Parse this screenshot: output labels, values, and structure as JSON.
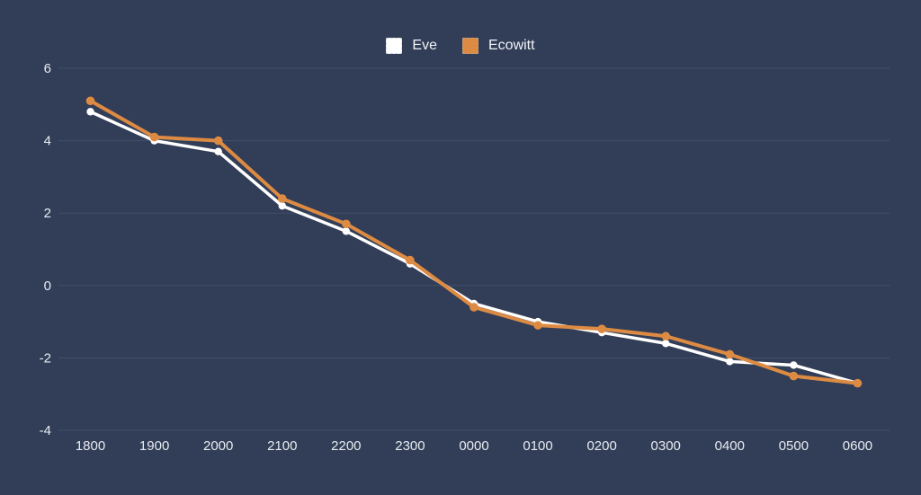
{
  "chart_data": {
    "type": "line",
    "title": "",
    "xlabel": "",
    "ylabel": "",
    "categories": [
      "1800",
      "1900",
      "2000",
      "2100",
      "2200",
      "2300",
      "0000",
      "0100",
      "0200",
      "0300",
      "0400",
      "0500",
      "0600"
    ],
    "series": [
      {
        "name": "Eve",
        "color": "#ffffff",
        "values": [
          4.8,
          4.0,
          3.7,
          2.2,
          1.5,
          0.6,
          -0.5,
          -1.0,
          -1.3,
          -1.6,
          -2.1,
          -2.2,
          -2.7
        ]
      },
      {
        "name": "Ecowitt",
        "color": "#dd8b43",
        "values": [
          5.1,
          4.1,
          4.0,
          2.4,
          1.7,
          0.7,
          -0.6,
          -1.1,
          -1.2,
          -1.4,
          -1.9,
          -2.5,
          -2.7
        ]
      }
    ],
    "ylim": [
      -4,
      6
    ],
    "yticks": [
      6,
      4,
      2,
      0,
      -2,
      -4
    ],
    "grid": true,
    "legend_position": "top-center",
    "colors": {
      "background": "#323e57",
      "gridline": "#47536d",
      "tick_text": "#e7ebf2",
      "legend_text": "#f1f4f8"
    }
  }
}
